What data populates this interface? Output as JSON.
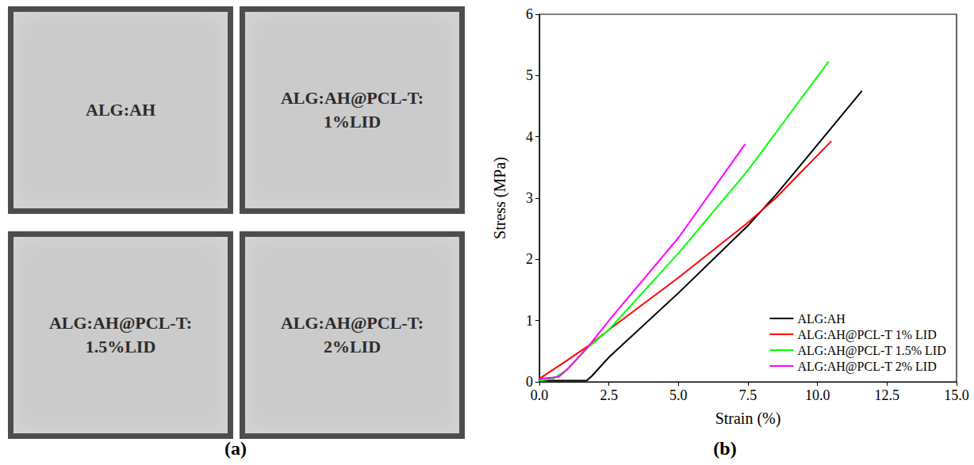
{
  "photos": {
    "label": "(a)",
    "samples": [
      "ALG:AH",
      "ALG:AH@PCL-T: 1%LID",
      "ALG:AH@PCL-T: 1.5%LID",
      "ALG:AH@PCL-T: 2%LID"
    ]
  },
  "chart_data": {
    "type": "line",
    "label": "(b)",
    "x_label": "Strain (%)",
    "y_label": "Stress (MPa)",
    "xlim": [
      0,
      15
    ],
    "xticks": [
      {
        "value": 0,
        "label": "0.0"
      },
      2.5,
      {
        "value": 5,
        "label": "5.0"
      },
      7.5,
      {
        "value": 10,
        "label": "10.0"
      },
      12.5,
      {
        "value": 15,
        "label": "15.0"
      }
    ],
    "ylim": [
      0,
      6
    ],
    "yticks": [
      0,
      1,
      2,
      3,
      4,
      5,
      6
    ],
    "grid": false,
    "legend": "lower right",
    "series": [
      {
        "name": "ALG:AH",
        "color": "#000000",
        "x": [
          0,
          1.7,
          1.9,
          2.5,
          5,
          7.5,
          8.5,
          10,
          11.6
        ],
        "values": [
          0.02,
          0.02,
          0.1,
          0.4,
          1.45,
          2.55,
          3.05,
          3.87,
          4.75
        ]
      },
      {
        "name": "ALG:AH@PCL-T 1% LID",
        "color": "#ff0000",
        "x": [
          0,
          1,
          1.8,
          2.5,
          5,
          7.5,
          8.5,
          10.5
        ],
        "values": [
          0.05,
          0.35,
          0.6,
          0.85,
          1.7,
          2.6,
          3.0,
          3.93
        ]
      },
      {
        "name": "ALG:AH@PCL-T 1.5% LID",
        "color": "#00ff00",
        "x": [
          0,
          0.5,
          1,
          1.8,
          2.5,
          5,
          7.5,
          10.4
        ],
        "values": [
          0.02,
          0.05,
          0.2,
          0.58,
          0.85,
          2.1,
          3.45,
          5.23
        ]
      },
      {
        "name": "ALG:AH@PCL-T 2% LID",
        "color": "#ff00ff",
        "x": [
          0,
          0.7,
          1,
          1.8,
          2.5,
          5,
          7.4
        ],
        "values": [
          0.05,
          0.08,
          0.2,
          0.6,
          1.0,
          2.35,
          3.88
        ]
      }
    ]
  }
}
